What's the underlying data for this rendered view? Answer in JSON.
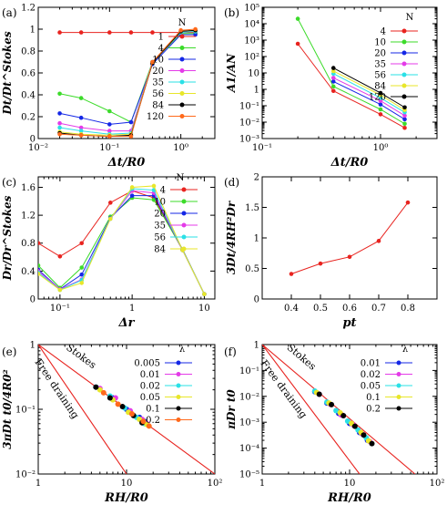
{
  "colors": {
    "red": "#e8231f",
    "green": "#3cdb2a",
    "blue": "#1427e6",
    "magenta": "#e43be8",
    "cyan": "#2ae0e6",
    "yellow": "#e8e62a",
    "black": "#000000",
    "orange": "#ff6a1c",
    "axis": "#000000"
  },
  "chart_data": [
    {
      "panel_label": "(a)",
      "type": "line",
      "xscale": "log",
      "xlim": [
        0.01,
        3
      ],
      "ylim": [
        0,
        1.2
      ],
      "xlabel": "Δt/R0",
      "ylabel": "Dt/Dt^Stokes",
      "xticks": [
        {
          "v": 0.01,
          "label": "10⁻²"
        },
        {
          "v": 0.1,
          "label": "10⁻¹"
        },
        {
          "v": 1,
          "label": "10⁰"
        }
      ],
      "yticks": [
        {
          "v": 0,
          "label": "0"
        },
        {
          "v": 0.2,
          "label": "0.2"
        },
        {
          "v": 0.4,
          "label": "0.4"
        },
        {
          "v": 0.6,
          "label": "0.6"
        },
        {
          "v": 0.8,
          "label": "0.8"
        },
        {
          "v": 1,
          "label": "1"
        },
        {
          "v": 1.2,
          "label": "1.2"
        }
      ],
      "legend": {
        "title": "N",
        "placement": "right"
      },
      "x": [
        0.02,
        0.04,
        0.1,
        0.2,
        0.4,
        1,
        1.6
      ],
      "series": [
        {
          "name": "1",
          "color": "red",
          "values": [
            0.97,
            0.97,
            0.97,
            0.97,
            0.97,
            0.97,
            0.97
          ]
        },
        {
          "name": "4",
          "color": "green",
          "values": [
            0.41,
            0.37,
            0.25,
            0.15,
            0.7,
            0.96,
            0.96
          ]
        },
        {
          "name": "10",
          "color": "blue",
          "values": [
            0.23,
            0.19,
            0.13,
            0.15,
            0.68,
            0.95,
            0.95
          ]
        },
        {
          "name": "20",
          "color": "magenta",
          "values": [
            0.14,
            0.1,
            0.07,
            0.07,
            0.7,
            0.97,
            0.98
          ]
        },
        {
          "name": "35",
          "color": "cyan",
          "values": [
            0.1,
            0.07,
            0.04,
            0.05,
            0.7,
            0.97,
            0.98
          ]
        },
        {
          "name": "56",
          "color": "yellow",
          "values": [
            0.06,
            0.04,
            0.03,
            0.04,
            0.69,
            0.98,
            0.99
          ]
        },
        {
          "name": "84",
          "color": "black",
          "values": [
            0.05,
            0.03,
            0.02,
            0.03,
            0.69,
            0.98,
            0.99
          ]
        },
        {
          "name": "120",
          "color": "orange",
          "values": [
            0.04,
            0.03,
            0.02,
            0.02,
            0.7,
            0.99,
            1.0
          ]
        }
      ]
    },
    {
      "panel_label": "(b)",
      "type": "line",
      "xscale": "log",
      "yscale": "log",
      "xlim": [
        0.1,
        3
      ],
      "ylim": [
        0.001,
        100000
      ],
      "xlabel": "Δt/R0",
      "ylabel": "A1/AN",
      "xticks": [
        {
          "v": 0.1,
          "label": "10⁻¹"
        },
        {
          "v": 1,
          "label": "10⁰"
        }
      ],
      "yticks": [
        {
          "v": 0.001,
          "label": "10⁻³"
        },
        {
          "v": 0.01,
          "label": "10⁻²"
        },
        {
          "v": 0.1,
          "label": "10⁻¹"
        },
        {
          "v": 1,
          "label": "1"
        },
        {
          "v": 10,
          "label": "10"
        },
        {
          "v": 100,
          "label": "10²"
        },
        {
          "v": 1000,
          "label": "10³"
        },
        {
          "v": 10000,
          "label": "10⁴"
        },
        {
          "v": 100000,
          "label": "10⁵"
        }
      ],
      "legend": {
        "title": "N",
        "placement": "right"
      },
      "x": [
        0.2,
        0.4,
        1,
        1.6
      ],
      "series": [
        {
          "name": "4",
          "color": "red",
          "values": [
            600,
            0.8,
            0.03,
            0.0045
          ]
        },
        {
          "name": "10",
          "color": "green",
          "values": [
            20000,
            1.5,
            0.06,
            0.008
          ]
        },
        {
          "name": "20",
          "color": "blue",
          "values": [
            null,
            3,
            0.12,
            0.015
          ]
        },
        {
          "name": "35",
          "color": "magenta",
          "values": [
            null,
            5,
            0.2,
            0.025
          ]
        },
        {
          "name": "56",
          "color": "cyan",
          "values": [
            null,
            9,
            0.3,
            0.04
          ]
        },
        {
          "name": "84",
          "color": "yellow",
          "values": [
            null,
            13,
            0.45,
            0.055
          ]
        },
        {
          "name": "120",
          "color": "black",
          "values": [
            null,
            20,
            0.6,
            0.08
          ]
        }
      ]
    },
    {
      "panel_label": "(c)",
      "type": "line",
      "xscale": "log",
      "xlim": [
        0.05,
        14
      ],
      "ylim": [
        0,
        1.75
      ],
      "xlabel": "Δr",
      "ylabel": "Dr/Dr^Stokes",
      "xticks": [
        {
          "v": 0.1,
          "label": "10⁻¹"
        },
        {
          "v": 1,
          "label": "1"
        },
        {
          "v": 10,
          "label": "10"
        }
      ],
      "yticks": [
        {
          "v": 0,
          "label": "0"
        },
        {
          "v": 0.4,
          "label": "0.4"
        },
        {
          "v": 0.8,
          "label": "0.8"
        },
        {
          "v": 1.2,
          "label": "1.2"
        },
        {
          "v": 1.6,
          "label": "1.6"
        }
      ],
      "legend": {
        "title": "N",
        "placement": "right"
      },
      "x": [
        0.05,
        0.1,
        0.2,
        0.5,
        1,
        2,
        5,
        10
      ],
      "series": [
        {
          "name": "4",
          "color": "red",
          "values": [
            0.8,
            0.61,
            0.8,
            1.38,
            1.55,
            1.45,
            0.7,
            0.07
          ]
        },
        {
          "name": "10",
          "color": "green",
          "values": [
            0.48,
            0.16,
            0.45,
            1.18,
            1.45,
            1.42,
            0.71,
            0.07
          ]
        },
        {
          "name": "20",
          "color": "blue",
          "values": [
            0.42,
            0.14,
            0.35,
            1.16,
            1.48,
            1.48,
            0.71,
            0.07
          ]
        },
        {
          "name": "35",
          "color": "magenta",
          "values": [
            0.4,
            0.14,
            0.28,
            1.15,
            1.55,
            1.52,
            0.7,
            0.07
          ]
        },
        {
          "name": "56",
          "color": "cyan",
          "values": [
            0.38,
            0.13,
            0.27,
            1.15,
            1.58,
            1.56,
            0.7,
            0.07
          ]
        },
        {
          "name": "84",
          "color": "yellow",
          "values": [
            0.36,
            0.13,
            0.23,
            1.15,
            1.6,
            1.62,
            0.7,
            0.07
          ]
        }
      ]
    },
    {
      "panel_label": "(d)",
      "type": "line",
      "xlim": [
        0.3,
        0.9
      ],
      "ylim": [
        0,
        2
      ],
      "xlabel": "pt",
      "ylabel": "3Dt/4RH²Dr",
      "xticks": [
        {
          "v": 0.4,
          "label": "0.4"
        },
        {
          "v": 0.5,
          "label": "0.5"
        },
        {
          "v": 0.6,
          "label": "0.6"
        },
        {
          "v": 0.7,
          "label": "0.7"
        },
        {
          "v": 0.8,
          "label": "0.8"
        }
      ],
      "yticks": [
        {
          "v": 0,
          "label": "0"
        },
        {
          "v": 0.5,
          "label": "0.5"
        },
        {
          "v": 1,
          "label": "1"
        },
        {
          "v": 1.5,
          "label": "1.5"
        },
        {
          "v": 2,
          "label": "2"
        }
      ],
      "x": [
        0.4,
        0.5,
        0.6,
        0.7,
        0.8
      ],
      "series": [
        {
          "name": "",
          "color": "red",
          "values": [
            0.41,
            0.58,
            0.69,
            0.95,
            1.58
          ]
        }
      ]
    },
    {
      "panel_label": "(e)",
      "type": "scatter",
      "xscale": "log",
      "yscale": "log",
      "xlim": [
        1,
        100
      ],
      "ylim": [
        0.01,
        1
      ],
      "xlabel": "RH/R0",
      "ylabel": "3πDt t0/4R0²",
      "xticks": [
        {
          "v": 1,
          "label": "1"
        },
        {
          "v": 10,
          "label": "10"
        },
        {
          "v": 100,
          "label": "10²"
        }
      ],
      "yticks": [
        {
          "v": 0.01,
          "label": "10⁻²"
        },
        {
          "v": 0.1,
          "label": "10⁻¹"
        },
        {
          "v": 1,
          "label": "1"
        }
      ],
      "legend": {
        "title": "λ",
        "placement": "right"
      },
      "reference_lines": [
        {
          "label": "Stokes",
          "x": [
            1,
            100
          ],
          "y": [
            1,
            0.01
          ]
        },
        {
          "label": "Free draining",
          "x": [
            1,
            10
          ],
          "y": [
            1,
            0.01
          ]
        }
      ],
      "series": [
        {
          "name": "0.005",
          "color": "blue",
          "x": [
            4.5,
            7,
            10,
            14,
            16
          ],
          "y": [
            0.22,
            0.15,
            0.1,
            0.075,
            0.065
          ]
        },
        {
          "name": "0.01",
          "color": "magenta",
          "x": [
            5,
            7.5,
            11,
            15,
            17
          ],
          "y": [
            0.21,
            0.15,
            0.095,
            0.07,
            0.06
          ]
        },
        {
          "name": "0.02",
          "color": "cyan",
          "x": [
            4.5,
            6.5,
            9.5,
            13,
            16
          ],
          "y": [
            0.22,
            0.16,
            0.105,
            0.075,
            0.06
          ]
        },
        {
          "name": "0.05",
          "color": "yellow",
          "x": [
            5,
            7,
            10.5,
            14,
            17
          ],
          "y": [
            0.2,
            0.14,
            0.09,
            0.07,
            0.058
          ]
        },
        {
          "name": "0.1",
          "color": "black",
          "x": [
            4.5,
            6.5,
            9,
            12,
            15
          ],
          "y": [
            0.22,
            0.15,
            0.11,
            0.08,
            0.062
          ]
        },
        {
          "name": "0.2",
          "color": "orange",
          "x": [
            5.5,
            8,
            11.5,
            15.5,
            18
          ],
          "y": [
            0.18,
            0.12,
            0.085,
            0.065,
            0.055
          ]
        }
      ]
    },
    {
      "panel_label": "(f)",
      "type": "scatter",
      "xscale": "log",
      "yscale": "log",
      "xlim": [
        1,
        100
      ],
      "ylim": [
        1e-05,
        1
      ],
      "xlabel": "RH/R0",
      "ylabel": "πDr t0",
      "xticks": [
        {
          "v": 1,
          "label": "1"
        },
        {
          "v": 10,
          "label": "10"
        },
        {
          "v": 100,
          "label": "10²"
        }
      ],
      "yticks": [
        {
          "v": 1e-05,
          "label": "10⁻⁵"
        },
        {
          "v": 0.0001,
          "label": "10⁻⁴"
        },
        {
          "v": 0.001,
          "label": "10⁻³"
        },
        {
          "v": 0.01,
          "label": "10⁻²"
        },
        {
          "v": 0.1,
          "label": "10⁻¹"
        },
        {
          "v": 1,
          "label": "1"
        }
      ],
      "legend": {
        "title": "λ",
        "placement": "right"
      },
      "reference_lines": [
        {
          "label": "Stokes",
          "x": [
            1,
            56
          ],
          "y": [
            1,
            1e-05
          ]
        },
        {
          "label": "Free draining",
          "x": [
            1,
            13
          ],
          "y": [
            1,
            1e-05
          ]
        }
      ],
      "series": [
        {
          "name": "0.01",
          "color": "blue",
          "x": [
            4,
            5.5,
            7.5,
            10,
            13,
            16
          ],
          "y": [
            0.015,
            0.0055,
            0.0022,
            0.0009,
            0.0004,
            0.0002
          ]
        },
        {
          "name": "0.02",
          "color": "magenta",
          "x": [
            4.5,
            6,
            8,
            11,
            14,
            17
          ],
          "y": [
            0.012,
            0.005,
            0.0019,
            0.0008,
            0.00035,
            0.00018
          ]
        },
        {
          "name": "0.05",
          "color": "cyan",
          "x": [
            4,
            5.5,
            7,
            9.5,
            12.5,
            15.5
          ],
          "y": [
            0.016,
            0.006,
            0.0028,
            0.0011,
            0.0005,
            0.00025
          ]
        },
        {
          "name": "0.1",
          "color": "yellow",
          "x": [
            4.2,
            5.8,
            7.8,
            10.5,
            13.5,
            16.5
          ],
          "y": [
            0.014,
            0.0055,
            0.0023,
            0.0009,
            0.0004,
            0.00019
          ]
        },
        {
          "name": "0.2",
          "color": "black",
          "x": [
            4.5,
            6.2,
            8.5,
            11.5,
            14.5,
            18
          ],
          "y": [
            0.012,
            0.0048,
            0.0018,
            0.0007,
            0.00032,
            0.00015
          ]
        }
      ]
    }
  ]
}
